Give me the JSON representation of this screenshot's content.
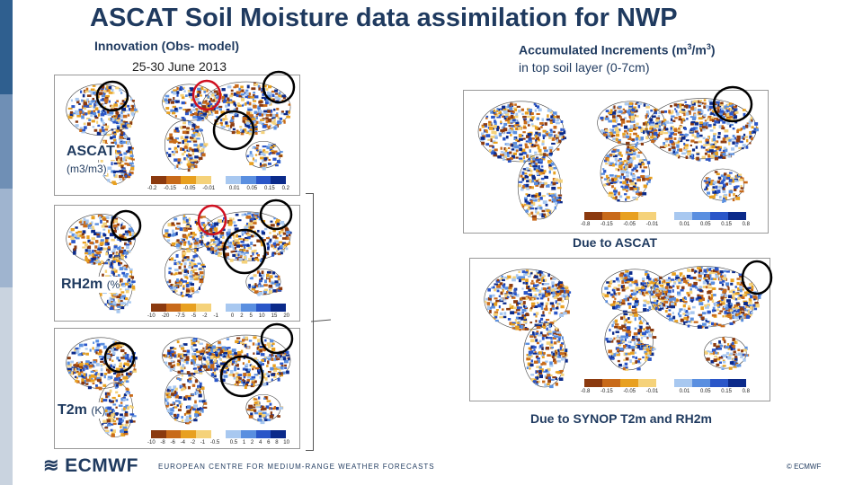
{
  "title": "ASCAT Soil Moisture data assimilation for NWP",
  "left_header": {
    "heading": "Innovation (Obs- model)",
    "dates": "25-30 June 2013"
  },
  "right_header": {
    "heading_main": "Accumulated Increments (m",
    "heading_sup1": "3",
    "heading_mid": "/m",
    "heading_sup2": "3",
    "heading_end": ")",
    "subheading": "in top soil layer (0-7cm)"
  },
  "panels": {
    "ascat": {
      "label": "ASCAT",
      "unit": "(m3/m3)",
      "ticks": [
        "-0.2",
        "-0.15",
        "-0.05",
        "-0.01",
        "",
        "0.01",
        "0.05",
        "0.15",
        "0.2"
      ]
    },
    "rh2m": {
      "label": "RH2m",
      "unit": "(%",
      "ticks": [
        "-10",
        "-20",
        "-7.5",
        "-5",
        "-2",
        "-1",
        "",
        "0",
        "2",
        "5",
        "10",
        "15",
        "20"
      ]
    },
    "t2m": {
      "label": "T2m",
      "unit": "(K)",
      "ticks": [
        "-10",
        "-8",
        "-6",
        "-4",
        "-2",
        "-1",
        "-0.5",
        "",
        "0.5",
        "1",
        "2",
        "4",
        "6",
        "8",
        "10"
      ]
    },
    "due_ascat": {
      "caption": "Due to ASCAT",
      "ticks": [
        "-0.8",
        "-0.15",
        "-0.05",
        "-0.01",
        "",
        "0.01",
        "0.05",
        "0.15",
        "0.8"
      ]
    },
    "due_synop": {
      "caption": "Due to SYNOP T2m and RH2m",
      "ticks": [
        "-0.8",
        "-0.15",
        "-0.05",
        "-0.01",
        "",
        "0.01",
        "0.05",
        "0.15",
        "0.8"
      ]
    }
  },
  "colors": {
    "dry": [
      "#8b3a0f",
      "#c86a1a",
      "#e8a020",
      "#f5d27a"
    ],
    "wet": [
      "#a8c8f0",
      "#5a8fe0",
      "#2a56c8",
      "#0b2a8a"
    ],
    "highlight_black": "#000000",
    "highlight_red": "#d01020",
    "brand": "#1f3a5f"
  },
  "footer": {
    "logo": "ECMWF",
    "tagline": "EUROPEAN CENTRE FOR MEDIUM-RANGE WEATHER FORECASTS",
    "copyright": "© ECMWF"
  }
}
